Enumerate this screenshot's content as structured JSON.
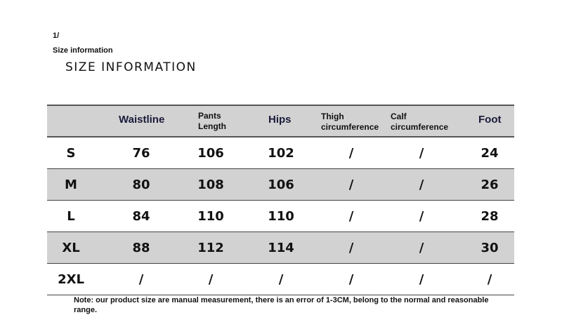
{
  "page": {
    "index": "1/",
    "subtitle": "Size information",
    "title": "SIZE INFORMATION",
    "note": "Note: our product size are manual measurement, there is an error of 1-3CM, belong to the normal and reasonable range."
  },
  "table": {
    "headers": [
      "",
      "Waistline",
      "Pants Length",
      "Hips",
      "Thigh circumference",
      "Calf circumference",
      "Foot"
    ],
    "header_lines": {
      "pants": [
        "Pants",
        "Length"
      ],
      "thigh": [
        "Thigh",
        "circumference"
      ],
      "calf": [
        "Calf",
        "circumference"
      ]
    },
    "rows": [
      [
        "S",
        "76",
        "106",
        "102",
        "/",
        "/",
        "24"
      ],
      [
        "M",
        "80",
        "108",
        "106",
        "/",
        "/",
        "26"
      ],
      [
        "L",
        "84",
        "110",
        "110",
        "/",
        "/",
        "28"
      ],
      [
        "XL",
        "88",
        "112",
        "114",
        "/",
        "/",
        "30"
      ],
      [
        "2XL",
        "/",
        "/",
        "/",
        "/",
        "/",
        "/"
      ]
    ],
    "stripe_color": "#d2d2d2"
  }
}
